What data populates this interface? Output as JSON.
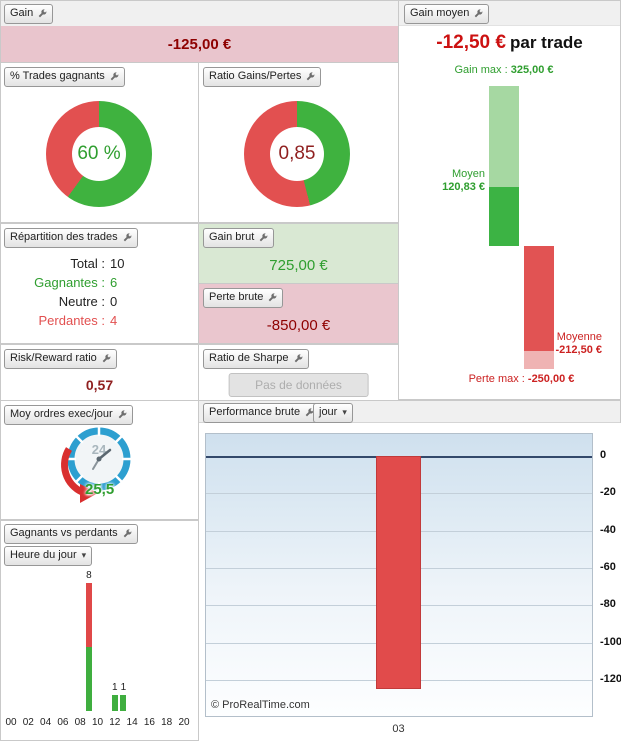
{
  "buttons": {
    "gain": "Gain",
    "gain_moyen": "Gain moyen",
    "pct_trades": "% Trades gagnants",
    "ratio_gains_pertes": "Ratio Gains/Pertes",
    "repartition": "Répartition des trades",
    "gain_brut": "Gain brut",
    "perte_brute": "Perte brute",
    "risk_reward": "Risk/Reward ratio",
    "ratio_sharpe": "Ratio de Sharpe",
    "moy_ordres": "Moy ordres exec/jour",
    "gagnants_vs_perdants": "Gagnants vs perdants",
    "heure_du_jour": "Heure du jour",
    "performance_brute": "Performance brute",
    "jour": "jour"
  },
  "values": {
    "gain": "-125,00 €",
    "gain_moyen": "-12,50 €",
    "gain_moyen_suffix": "par trade",
    "gain_brut": "725,00 €",
    "perte_brute": "-850,00 €",
    "risk_reward": "0,57",
    "sharpe_empty": "Pas de données",
    "moy_ordres": "25,5",
    "gauge_24": "24"
  },
  "repartition": {
    "rows": [
      {
        "label": "Total :",
        "value": "10",
        "color": "black"
      },
      {
        "label": "Gagnantes :",
        "value": "6",
        "color": "green"
      },
      {
        "label": "Neutre :",
        "value": "0",
        "color": "black"
      },
      {
        "label": "Perdantes :",
        "value": "4",
        "color": "red"
      }
    ]
  },
  "waterfall": {
    "gain_max_label": "Gain max :",
    "gain_max_value": "325,00 €",
    "moyen_label": "Moyen",
    "moyen_value": "120,83 €",
    "moyenne_label": "Moyenne",
    "moyenne_value": "-212,50 €",
    "perte_max_label": "Perte max :",
    "perte_max_value": "-250,00 €"
  },
  "performance": {
    "watermark": "© ProRealTime.com"
  },
  "colors": {
    "green": "#2f9e2f",
    "red": "#e25050",
    "dark_red": "#8e0000"
  },
  "chart_data": [
    {
      "id": "pct_trades_donut",
      "type": "pie",
      "title": "% Trades gagnants",
      "labels": [
        "Gagnants",
        "Perdants"
      ],
      "values": [
        6,
        4
      ],
      "colors": [
        "#3fb23f",
        "#e25050"
      ],
      "center_text": "60 %"
    },
    {
      "id": "ratio_donut",
      "type": "pie",
      "title": "Ratio Gains/Pertes",
      "labels": [
        "Gains",
        "Pertes"
      ],
      "values": [
        725,
        850
      ],
      "colors": [
        "#3fb23f",
        "#e25050"
      ],
      "center_text": "0,85"
    },
    {
      "id": "gain_moyen_waterfall",
      "type": "bar",
      "title": "Gain moyen (€ par trade)",
      "values": {
        "gain_max": 325.0,
        "gain_moyen": 120.83,
        "perte_moyenne": -212.5,
        "perte_max": -250.0
      },
      "unit": "EUR"
    },
    {
      "id": "gagnants_vs_perdants",
      "type": "bar",
      "title": "Gagnants vs perdants — Heure du jour",
      "x_ticks": [
        "00",
        "02",
        "04",
        "06",
        "08",
        "10",
        "12",
        "14",
        "16",
        "18",
        "20"
      ],
      "bars": [
        {
          "hour": 9,
          "gagnants": 4,
          "perdants": 4,
          "label": "8"
        },
        {
          "hour": 12,
          "gagnants": 1,
          "perdants": 0,
          "label": "1"
        },
        {
          "hour": 13,
          "gagnants": 1,
          "perdants": 0,
          "label": "1"
        }
      ],
      "ymax": 8
    },
    {
      "id": "performance_brute",
      "type": "bar",
      "title": "Performance brute — jour",
      "categories": [
        "03"
      ],
      "values": [
        -125
      ],
      "ylim": [
        10,
        -135
      ],
      "yticks": [
        0,
        -20,
        -40,
        -60,
        -80,
        -100,
        -120
      ]
    }
  ]
}
